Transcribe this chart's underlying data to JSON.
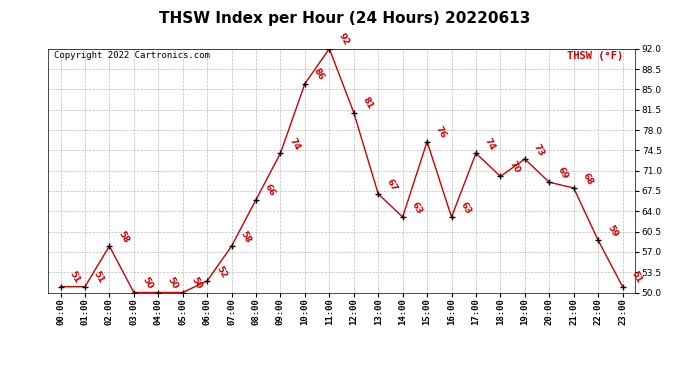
{
  "title": "THSW Index per Hour (24 Hours) 20220613",
  "copyright": "Copyright 2022 Cartronics.com",
  "legend_label": "THSW (°F)",
  "hours": [
    "00:00",
    "01:00",
    "02:00",
    "03:00",
    "04:00",
    "05:00",
    "06:00",
    "07:00",
    "08:00",
    "09:00",
    "10:00",
    "11:00",
    "12:00",
    "13:00",
    "14:00",
    "15:00",
    "16:00",
    "17:00",
    "18:00",
    "19:00",
    "20:00",
    "21:00",
    "22:00",
    "23:00"
  ],
  "values": [
    51,
    51,
    58,
    50,
    50,
    50,
    52,
    58,
    66,
    74,
    86,
    92,
    81,
    67,
    63,
    76,
    63,
    74,
    70,
    73,
    69,
    68,
    59,
    51
  ],
  "line_color": "#cc0000",
  "marker_color": "#000000",
  "label_color": "#cc0000",
  "grid_color": "#bbbbbb",
  "background_color": "#ffffff",
  "ylim": [
    50.0,
    92.0
  ],
  "yticks": [
    50.0,
    53.5,
    57.0,
    60.5,
    64.0,
    67.5,
    71.0,
    74.5,
    78.0,
    81.5,
    85.0,
    88.5,
    92.0
  ],
  "title_fontsize": 11,
  "label_fontsize": 6.5,
  "copyright_fontsize": 6.5,
  "legend_fontsize": 7.5,
  "tick_fontsize": 6.5
}
